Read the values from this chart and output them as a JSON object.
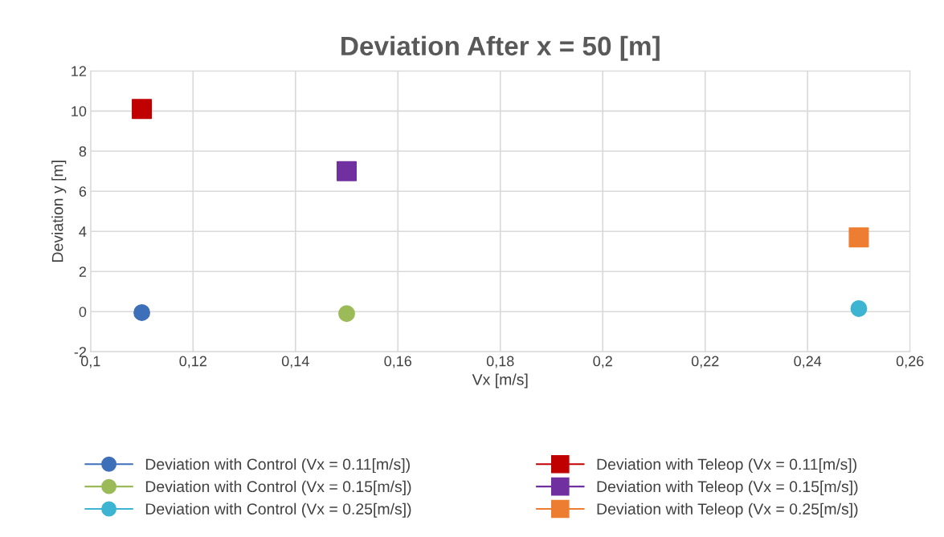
{
  "chart_data": {
    "type": "scatter",
    "title": "Deviation After x = 50 [m]",
    "xlabel": "Vx [m/s]",
    "ylabel": "Deviation y [m]",
    "xlim": [
      0.1,
      0.26
    ],
    "xticks": [
      {
        "value": 0.1,
        "label": "0,1"
      },
      {
        "value": 0.12,
        "label": "0,12"
      },
      {
        "value": 0.14,
        "label": "0,14"
      },
      {
        "value": 0.16,
        "label": "0,16"
      },
      {
        "value": 0.18,
        "label": "0,18"
      },
      {
        "value": 0.2,
        "label": "0,2"
      },
      {
        "value": 0.22,
        "label": "0,22"
      },
      {
        "value": 0.24,
        "label": "0,24"
      },
      {
        "value": 0.26,
        "label": "0,26"
      }
    ],
    "ylim": [
      -2,
      12
    ],
    "yticks": [
      -2,
      0,
      2,
      4,
      6,
      8,
      10,
      12
    ],
    "grid": true,
    "legend": "bottom",
    "series": [
      {
        "name": "Deviation with Control (Vx = 0.11[m/s])",
        "color": "#3d70b8",
        "marker": "circle",
        "x": [
          0.11
        ],
        "values": [
          -0.05
        ]
      },
      {
        "name": "Deviation with Teleop (Vx = 0.11[m/s])",
        "color": "#c00000",
        "marker": "square",
        "x": [
          0.11
        ],
        "values": [
          10.1
        ]
      },
      {
        "name": "Deviation with Control (Vx = 0.15[m/s])",
        "color": "#9bbb59",
        "marker": "circle",
        "x": [
          0.15
        ],
        "values": [
          -0.1
        ]
      },
      {
        "name": "Deviation with Teleop (Vx = 0.15[m/s])",
        "color": "#7030a0",
        "marker": "square",
        "x": [
          0.15
        ],
        "values": [
          7.0
        ]
      },
      {
        "name": "Deviation with Control (Vx = 0.25[m/s])",
        "color": "#3cb4d2",
        "marker": "circle",
        "x": [
          0.25
        ],
        "values": [
          0.15
        ]
      },
      {
        "name": "Deviation with Teleop (Vx = 0.25[m/s])",
        "color": "#ed7d31",
        "marker": "square",
        "x": [
          0.25
        ],
        "values": [
          3.7
        ]
      }
    ]
  }
}
